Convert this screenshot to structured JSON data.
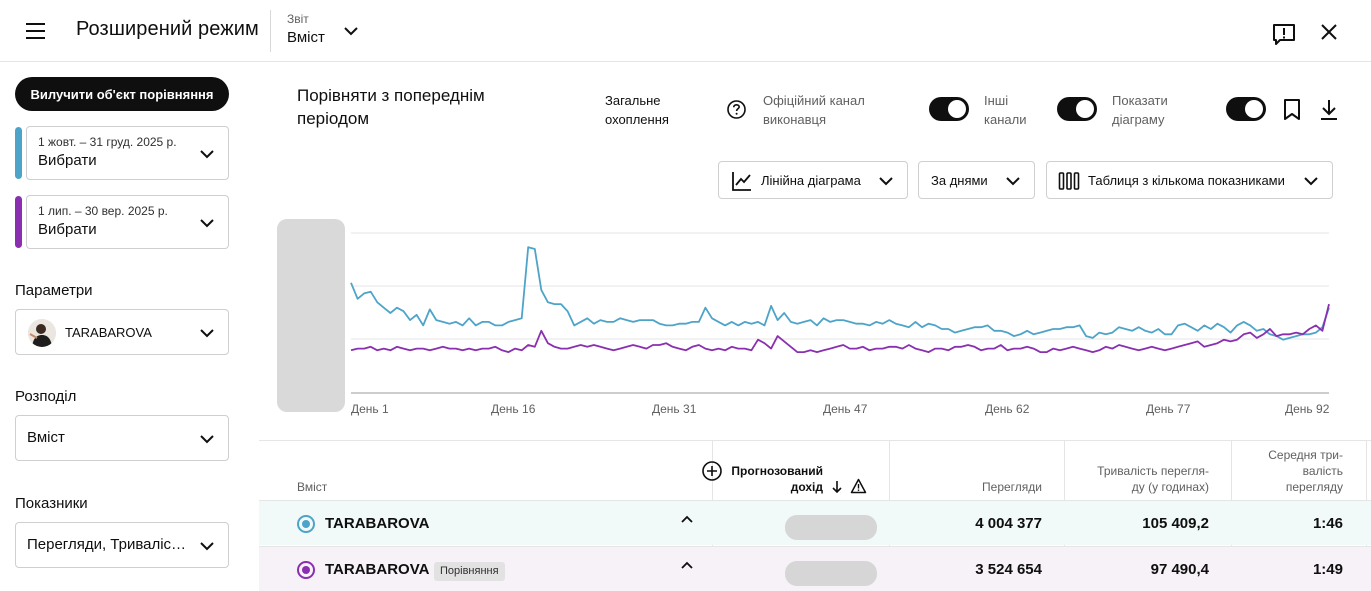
{
  "header": {
    "title": "Розширений режим",
    "report_label": "Звіт",
    "report_value": "Вміст"
  },
  "sidebar": {
    "remove_button": "Вилучити об'єкт порівняння",
    "period1": {
      "range": "1 жовт. – 31 груд. 2025 р.",
      "value": "Вибрати",
      "color": "#4ea4c8"
    },
    "period2": {
      "range": "1 лип. – 30 вер. 2025 р.",
      "value": "Вибрати",
      "color": "#8a2fb0"
    },
    "params_label": "Параметри",
    "channel": "TARABAROVA",
    "split_label": "Розподіл",
    "split_value": "Вміст",
    "metrics_label": "Показники",
    "metrics_value": "Перегляди, Триваліс…"
  },
  "controls": {
    "compare_title": "Порівняти з попереднім періодом",
    "total_reach": "Загальне\nохоплення",
    "official_channel": "Офіційний канал\nвиконавця",
    "other_channels": "Інші\nканали",
    "show_chart": "Показати\nдіаграму",
    "chart_type": "Лінійна діаграма",
    "granularity": "За днями",
    "table_type": "Таблиця з кількома показниками"
  },
  "chart_data": {
    "type": "line",
    "x_ticks": [
      "День 1",
      "День 16",
      "День 31",
      "День 47",
      "День 62",
      "День 77",
      "День 92"
    ],
    "series": [
      {
        "color": "#4ea4c8",
        "values": [
          62,
          53,
          56,
          57,
          51,
          48,
          45,
          48,
          46,
          41,
          44,
          38,
          47,
          41,
          40,
          39,
          40,
          38,
          42,
          38,
          40,
          40,
          38,
          38,
          40,
          41,
          42,
          82,
          81,
          58,
          51,
          50,
          50,
          46,
          38,
          40,
          42,
          39,
          41,
          40,
          40,
          42,
          41,
          40,
          41,
          41,
          41,
          39,
          38,
          38,
          39,
          39,
          40,
          40,
          48,
          42,
          40,
          38,
          40,
          38,
          40,
          39,
          40,
          38,
          49,
          41,
          45,
          40,
          39,
          40,
          41,
          38,
          42,
          40,
          41,
          41,
          40,
          39,
          39,
          38,
          40,
          39,
          41,
          39,
          38,
          37,
          40,
          37,
          39,
          38,
          36,
          36,
          34,
          35,
          36,
          37,
          37,
          38,
          35,
          35,
          34,
          32,
          33,
          35,
          33,
          34,
          35,
          36,
          36,
          37,
          37,
          38,
          32,
          31,
          34,
          33,
          34,
          37,
          36,
          35,
          37,
          35,
          34,
          36,
          33,
          33,
          38,
          39,
          37,
          35,
          38,
          36,
          39,
          37,
          34,
          38,
          40,
          38,
          35,
          36,
          33,
          32,
          30,
          31,
          32,
          33,
          33,
          34,
          37,
          48
        ]
      },
      {
        "color": "#8a2fb0",
        "values": [
          24,
          25,
          25,
          26,
          24,
          25,
          24,
          26,
          25,
          24,
          25,
          25,
          24,
          25,
          26,
          25,
          25,
          24,
          25,
          24,
          25,
          25,
          26,
          24,
          23,
          25,
          24,
          27,
          26,
          35,
          28,
          26,
          25,
          25,
          26,
          27,
          26,
          27,
          26,
          25,
          24,
          25,
          26,
          27,
          26,
          25,
          27,
          27,
          28,
          26,
          25,
          24,
          26,
          27,
          25,
          24,
          25,
          24,
          26,
          25,
          25,
          24,
          30,
          28,
          25,
          32,
          29,
          26,
          23,
          23,
          24,
          23,
          24,
          25,
          26,
          27,
          25,
          25,
          26,
          24,
          25,
          25,
          26,
          26,
          25,
          27,
          25,
          24,
          23,
          25,
          25,
          24,
          26,
          26,
          27,
          26,
          24,
          25,
          25,
          27,
          24,
          25,
          25,
          26,
          25,
          23,
          23,
          25,
          24,
          25,
          26,
          25,
          24,
          23,
          24,
          26,
          25,
          27,
          26,
          25,
          24,
          25,
          26,
          25,
          24,
          25,
          26,
          27,
          28,
          29,
          26,
          27,
          28,
          30,
          29,
          30,
          33,
          34,
          31,
          33,
          36,
          32,
          33,
          33,
          34,
          33,
          36,
          38,
          35,
          50
        ]
      }
    ]
  },
  "table": {
    "col_content": "Вміст",
    "col_revenue": "Прогнозований\nдохід",
    "col_views": "Перегляди",
    "col_watchtime": "Тривалість перегля-\nду (у годинах)",
    "col_avgduration": "Середня три-\nвалість\nперегляду",
    "rows": [
      {
        "name": "TARABAROVA",
        "badge": "",
        "views": "4 004 377",
        "watchtime": "105 409,2",
        "avg": "1:46",
        "color": "#4ea4c8"
      },
      {
        "name": "TARABAROVA",
        "badge": "Порівняння",
        "views": "3 524 654",
        "watchtime": "97 490,4",
        "avg": "1:49",
        "color": "#8a2fb0"
      }
    ]
  }
}
